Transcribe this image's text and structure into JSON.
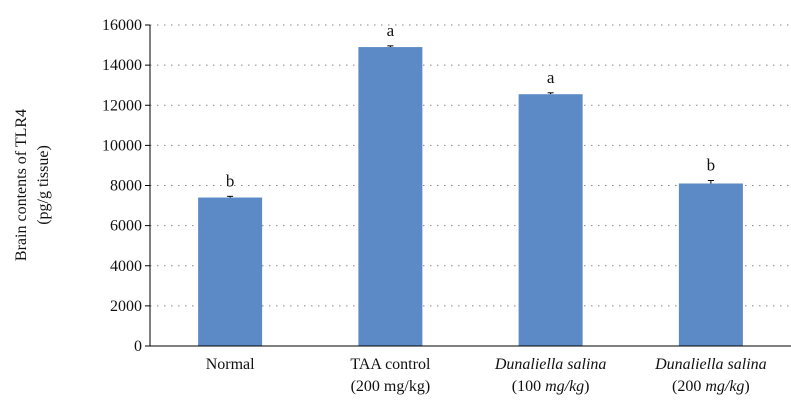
{
  "chart_data": {
    "type": "bar",
    "ylabel": "Brain contents of TLR4",
    "ylabel_units": "(pg/g tissue)",
    "ylim": [
      0,
      16000
    ],
    "yticks": [
      0,
      2000,
      4000,
      6000,
      8000,
      10000,
      12000,
      14000,
      16000
    ],
    "grid": "horizontal dotted",
    "categories": [
      {
        "line1": "Normal",
        "line2": "",
        "italic": false
      },
      {
        "line1": "TAA control",
        "line2": "(200 mg/kg)",
        "italic": false
      },
      {
        "line1": "Dunaliella salina",
        "line2": "(100 mg/kg)",
        "italic": true
      },
      {
        "line1": "Dunaliella salina",
        "line2": "(200 mg/kg)",
        "italic": true
      }
    ],
    "values": [
      7400,
      14900,
      12550,
      8100
    ],
    "errors": [
      60,
      60,
      70,
      150
    ],
    "significance": [
      "b",
      "a",
      "a",
      "b"
    ],
    "bar_color": "#5b8ac6"
  }
}
